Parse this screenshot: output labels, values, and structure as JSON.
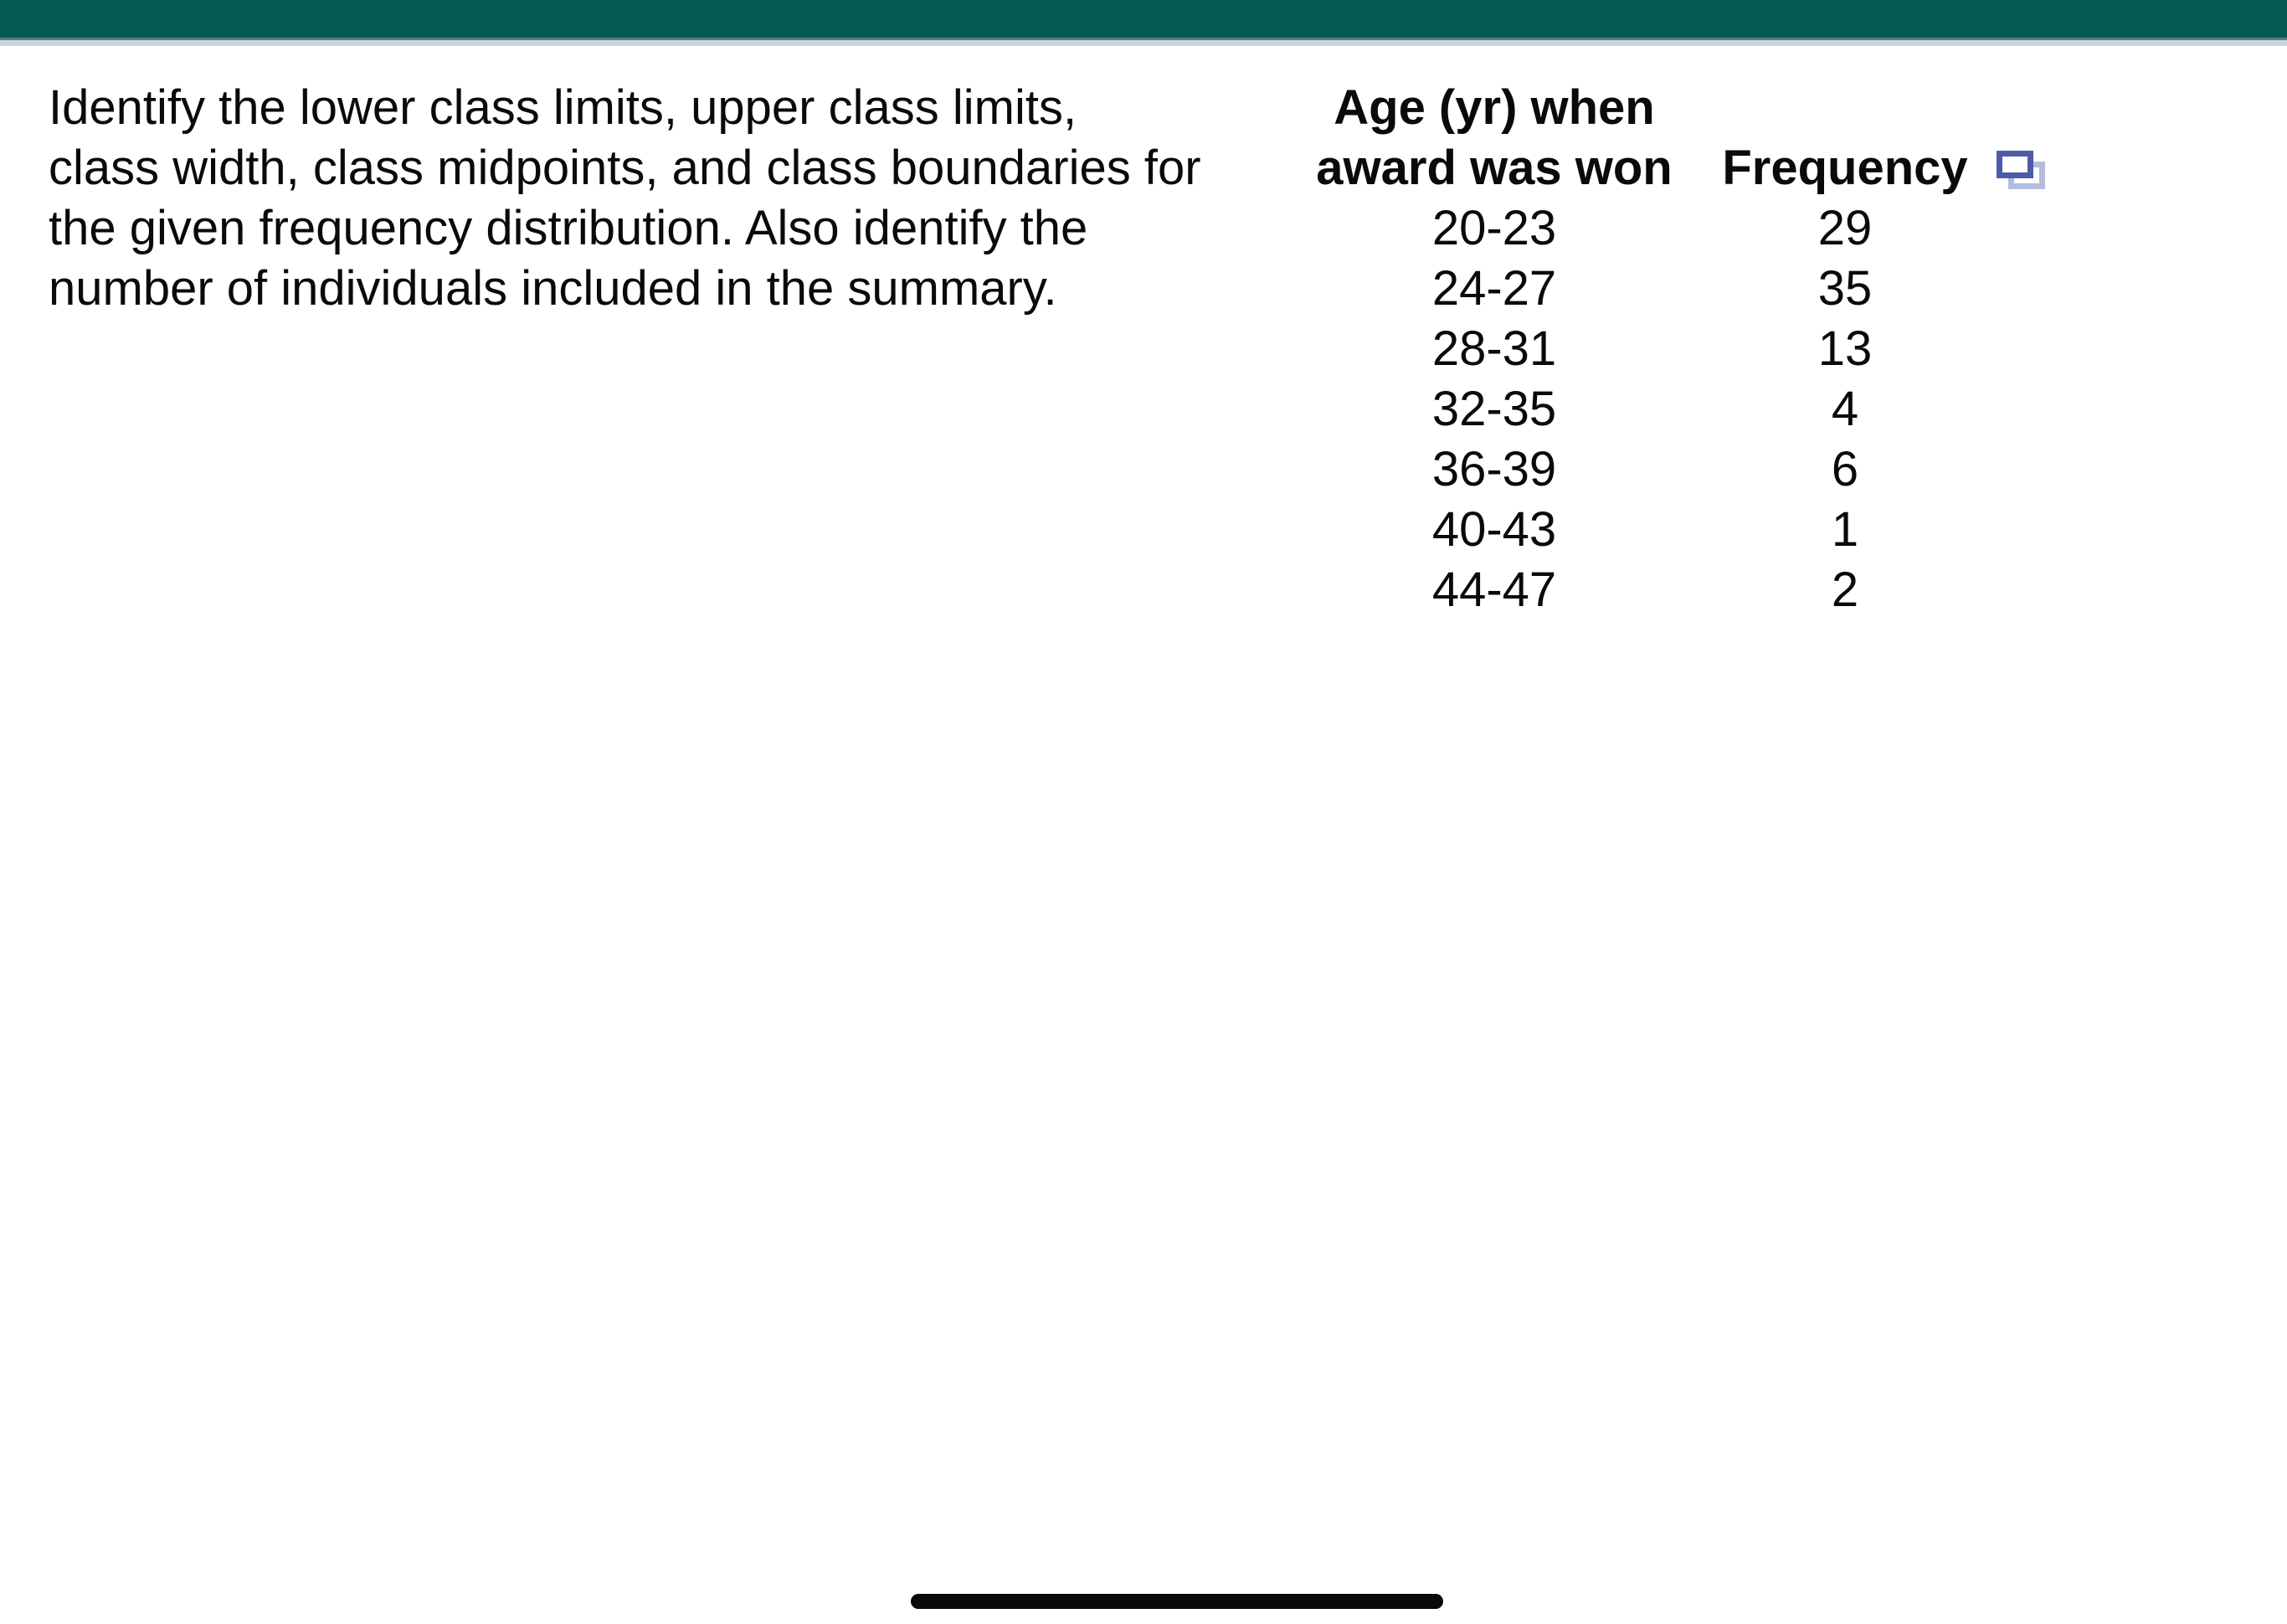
{
  "app": {
    "top_bar_color": "#075A51",
    "top_bar_edge_color": "#5D807A",
    "separator_color": "#CCD4E0",
    "background_color": "#FFFFFF",
    "text_color": "#0A0A0A"
  },
  "question": {
    "full_text": "Identify the lower class limits, upper class limits, class width, class midpoints, and class boundaries for the given frequency distribution. Also identify the number of individuals included in the summary.",
    "lines": [
      "Identify the lower class limits, upper class limits,",
      "class width, class midpoints, and class boundaries for",
      "the given frequency distribution. Also identify the",
      "number of individuals included in the summary."
    ]
  },
  "table": {
    "age_header_line1": "Age (yr) when",
    "age_header_line2": "award was won",
    "frequency_header": "Frequency",
    "popout_icon": "table-popout-icon",
    "icon_front_color": "#4D5CA9",
    "icon_back_color": "#B5BDDD",
    "rows": [
      {
        "age_range": "20-23",
        "frequency": "29"
      },
      {
        "age_range": "24-27",
        "frequency": "35"
      },
      {
        "age_range": "28-31",
        "frequency": "13"
      },
      {
        "age_range": "32-35",
        "frequency": "4"
      },
      {
        "age_range": "36-39",
        "frequency": "6"
      },
      {
        "age_range": "40-43",
        "frequency": "1"
      },
      {
        "age_range": "44-47",
        "frequency": "2"
      }
    ]
  },
  "home_indicator": {
    "color": "#0A0A0A"
  }
}
